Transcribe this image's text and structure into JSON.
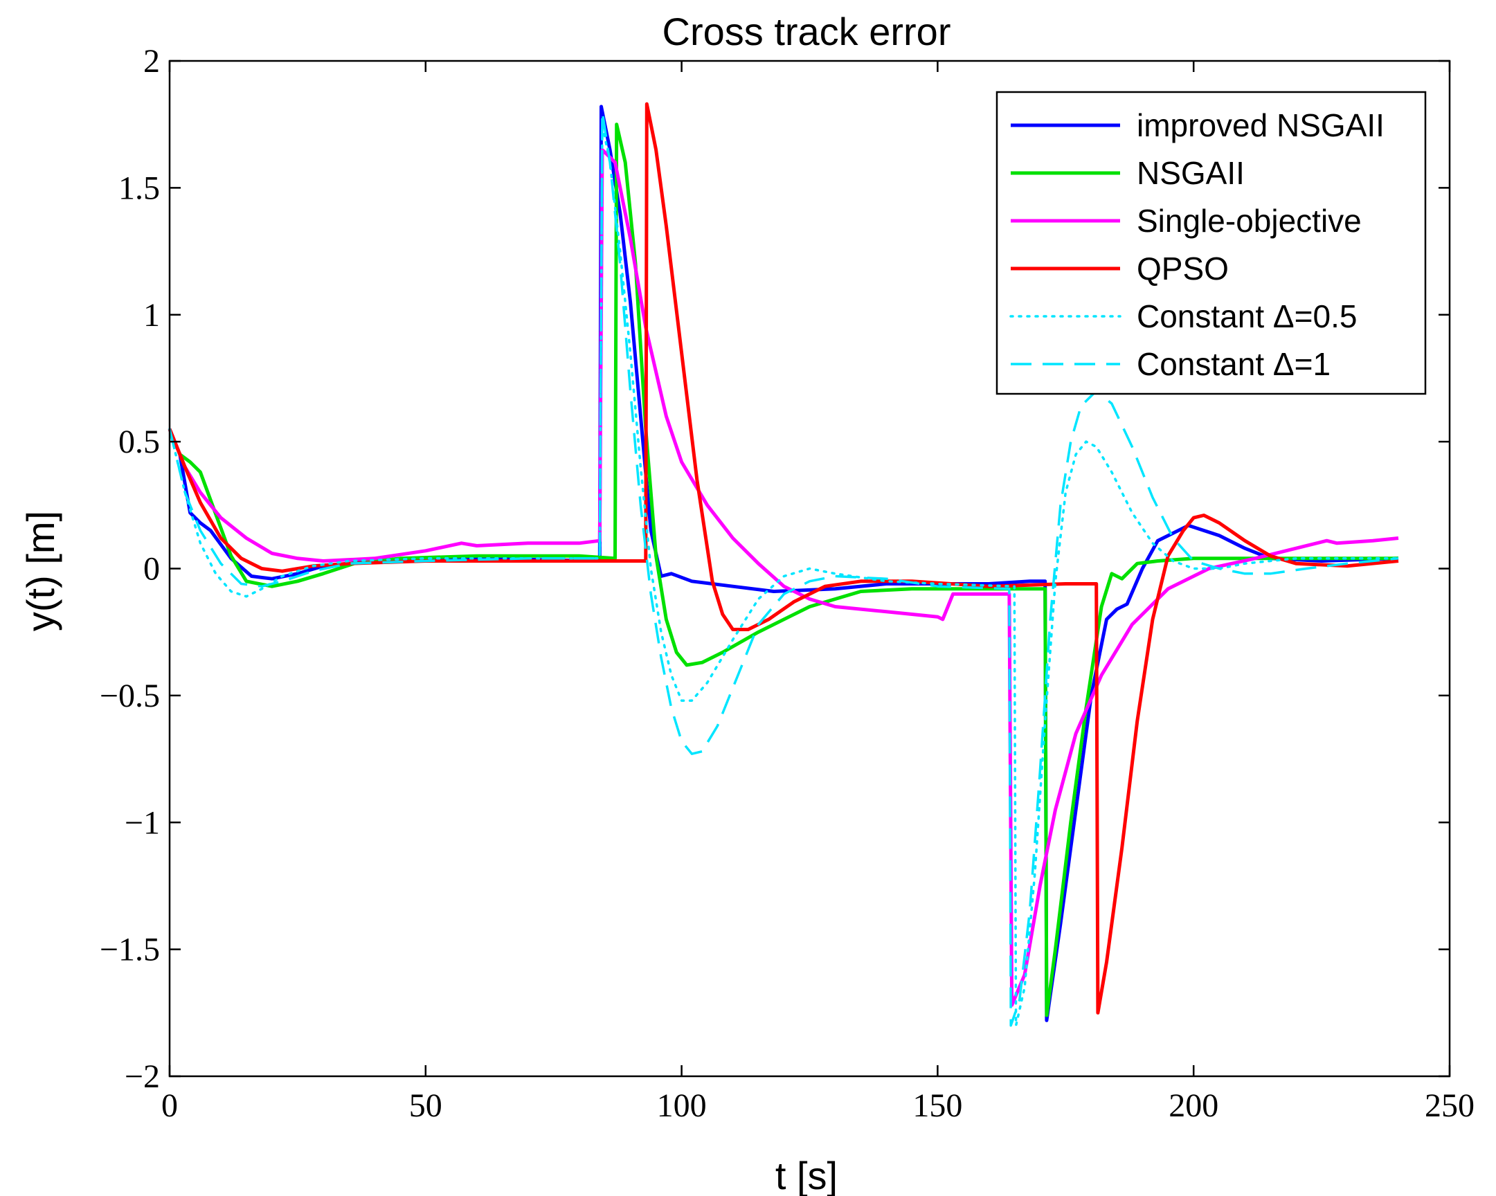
{
  "chart_data": {
    "type": "line",
    "title": "Cross track error",
    "xlabel": "t [s]",
    "ylabel": "y(t) [m]",
    "xlim": [
      0,
      250
    ],
    "ylim": [
      -2,
      2
    ],
    "xticks": [
      0,
      50,
      100,
      150,
      200,
      250
    ],
    "yticks": [
      -2,
      -1.5,
      -1,
      -0.5,
      0,
      0.5,
      1,
      1.5,
      2
    ],
    "xtick_labels": [
      "0",
      "50",
      "100",
      "150",
      "200",
      "250"
    ],
    "ytick_labels": [
      "−2",
      "−1.5",
      "−1",
      "−0.5",
      "0",
      "0.5",
      "1",
      "1.5",
      "2"
    ],
    "grid": false,
    "legend_position": "top-right",
    "series": [
      {
        "name": "improved NSGAII",
        "color": "#0000ff",
        "style": "solid",
        "points": [
          [
            0,
            0.55
          ],
          [
            2,
            0.45
          ],
          [
            4,
            0.22
          ],
          [
            6,
            0.18
          ],
          [
            8,
            0.15
          ],
          [
            12,
            0.04
          ],
          [
            16,
            -0.03
          ],
          [
            20,
            -0.04
          ],
          [
            25,
            -0.02
          ],
          [
            30,
            0.01
          ],
          [
            40,
            0.03
          ],
          [
            60,
            0.04
          ],
          [
            84,
            0.03
          ],
          [
            84.3,
            1.82
          ],
          [
            86,
            1.65
          ],
          [
            88,
            1.4
          ],
          [
            90,
            1.05
          ],
          [
            92,
            0.6
          ],
          [
            94,
            0.15
          ],
          [
            96,
            -0.03
          ],
          [
            98,
            -0.02
          ],
          [
            102,
            -0.05
          ],
          [
            110,
            -0.07
          ],
          [
            118,
            -0.09
          ],
          [
            130,
            -0.08
          ],
          [
            140,
            -0.06
          ],
          [
            160,
            -0.06
          ],
          [
            168,
            -0.05
          ],
          [
            171,
            -0.05
          ],
          [
            171.3,
            -1.78
          ],
          [
            174,
            -1.4
          ],
          [
            177,
            -0.95
          ],
          [
            180,
            -0.5
          ],
          [
            183,
            -0.2
          ],
          [
            185,
            -0.16
          ],
          [
            187,
            -0.14
          ],
          [
            190,
            0.0
          ],
          [
            193,
            0.11
          ],
          [
            196,
            0.14
          ],
          [
            199,
            0.17
          ],
          [
            205,
            0.13
          ],
          [
            210,
            0.08
          ],
          [
            215,
            0.04
          ],
          [
            225,
            0.03
          ],
          [
            240,
            0.04
          ]
        ]
      },
      {
        "name": "NSGAII",
        "color": "#00e000",
        "style": "solid",
        "points": [
          [
            0,
            0.55
          ],
          [
            2,
            0.45
          ],
          [
            4,
            0.42
          ],
          [
            6,
            0.38
          ],
          [
            8,
            0.27
          ],
          [
            12,
            0.05
          ],
          [
            15,
            -0.05
          ],
          [
            20,
            -0.07
          ],
          [
            25,
            -0.05
          ],
          [
            30,
            -0.02
          ],
          [
            36,
            0.02
          ],
          [
            45,
            0.04
          ],
          [
            60,
            0.05
          ],
          [
            80,
            0.05
          ],
          [
            87,
            0.04
          ],
          [
            87.3,
            1.75
          ],
          [
            89,
            1.6
          ],
          [
            91,
            1.2
          ],
          [
            93,
            0.55
          ],
          [
            95,
            0.05
          ],
          [
            97,
            -0.2
          ],
          [
            99,
            -0.33
          ],
          [
            101,
            -0.38
          ],
          [
            104,
            -0.37
          ],
          [
            108,
            -0.33
          ],
          [
            115,
            -0.25
          ],
          [
            125,
            -0.15
          ],
          [
            135,
            -0.09
          ],
          [
            145,
            -0.08
          ],
          [
            160,
            -0.08
          ],
          [
            171,
            -0.08
          ],
          [
            171.3,
            -1.76
          ],
          [
            173,
            -1.5
          ],
          [
            176,
            -1.0
          ],
          [
            179,
            -0.55
          ],
          [
            182,
            -0.15
          ],
          [
            184,
            -0.02
          ],
          [
            186,
            -0.04
          ],
          [
            189,
            0.02
          ],
          [
            193,
            0.03
          ],
          [
            200,
            0.04
          ],
          [
            220,
            0.04
          ],
          [
            240,
            0.04
          ]
        ]
      },
      {
        "name": "Single-objective",
        "color": "#ff00ff",
        "style": "solid",
        "points": [
          [
            0,
            0.55
          ],
          [
            3,
            0.4
          ],
          [
            6,
            0.3
          ],
          [
            10,
            0.2
          ],
          [
            15,
            0.12
          ],
          [
            20,
            0.06
          ],
          [
            25,
            0.04
          ],
          [
            30,
            0.03
          ],
          [
            40,
            0.04
          ],
          [
            50,
            0.07
          ],
          [
            57,
            0.1
          ],
          [
            60,
            0.09
          ],
          [
            70,
            0.1
          ],
          [
            80,
            0.1
          ],
          [
            84,
            0.11
          ],
          [
            84.5,
            1.65
          ],
          [
            87,
            1.6
          ],
          [
            90,
            1.3
          ],
          [
            93,
            0.95
          ],
          [
            97,
            0.6
          ],
          [
            100,
            0.42
          ],
          [
            105,
            0.25
          ],
          [
            110,
            0.12
          ],
          [
            115,
            0.02
          ],
          [
            120,
            -0.07
          ],
          [
            125,
            -0.12
          ],
          [
            130,
            -0.15
          ],
          [
            140,
            -0.17
          ],
          [
            150,
            -0.19
          ],
          [
            151,
            -0.2
          ],
          [
            153,
            -0.1
          ],
          [
            155,
            -0.1
          ],
          [
            158,
            -0.1
          ],
          [
            160,
            -0.1
          ],
          [
            164,
            -0.1
          ],
          [
            164.5,
            -1.72
          ],
          [
            167,
            -1.6
          ],
          [
            170,
            -1.25
          ],
          [
            173,
            -0.95
          ],
          [
            177,
            -0.65
          ],
          [
            182,
            -0.42
          ],
          [
            188,
            -0.22
          ],
          [
            195,
            -0.08
          ],
          [
            203,
            0.0
          ],
          [
            212,
            0.04
          ],
          [
            220,
            0.08
          ],
          [
            226,
            0.11
          ],
          [
            228,
            0.1
          ],
          [
            235,
            0.11
          ],
          [
            240,
            0.12
          ]
        ]
      },
      {
        "name": "QPSO",
        "color": "#ff0000",
        "style": "solid",
        "points": [
          [
            0,
            0.55
          ],
          [
            3,
            0.4
          ],
          [
            6,
            0.26
          ],
          [
            10,
            0.12
          ],
          [
            14,
            0.04
          ],
          [
            18,
            0.0
          ],
          [
            22,
            -0.01
          ],
          [
            28,
            0.01
          ],
          [
            35,
            0.02
          ],
          [
            50,
            0.03
          ],
          [
            70,
            0.03
          ],
          [
            90,
            0.03
          ],
          [
            93,
            0.03
          ],
          [
            93.2,
            1.83
          ],
          [
            95,
            1.65
          ],
          [
            97,
            1.35
          ],
          [
            100,
            0.85
          ],
          [
            103,
            0.35
          ],
          [
            106,
            -0.05
          ],
          [
            108,
            -0.18
          ],
          [
            110,
            -0.24
          ],
          [
            113,
            -0.24
          ],
          [
            117,
            -0.2
          ],
          [
            122,
            -0.13
          ],
          [
            128,
            -0.07
          ],
          [
            135,
            -0.05
          ],
          [
            145,
            -0.05
          ],
          [
            160,
            -0.07
          ],
          [
            175,
            -0.06
          ],
          [
            181,
            -0.06
          ],
          [
            181.3,
            -1.75
          ],
          [
            183,
            -1.55
          ],
          [
            186,
            -1.1
          ],
          [
            189,
            -0.6
          ],
          [
            192,
            -0.2
          ],
          [
            195,
            0.05
          ],
          [
            198,
            0.15
          ],
          [
            200,
            0.2
          ],
          [
            202,
            0.21
          ],
          [
            205,
            0.18
          ],
          [
            210,
            0.11
          ],
          [
            215,
            0.05
          ],
          [
            220,
            0.02
          ],
          [
            230,
            0.01
          ],
          [
            240,
            0.03
          ]
        ]
      },
      {
        "name": "Constant Δ=0.5",
        "color": "#00e5ff",
        "style": "dotted",
        "points": [
          [
            0,
            0.55
          ],
          [
            3,
            0.3
          ],
          [
            6,
            0.1
          ],
          [
            9,
            -0.02
          ],
          [
            12,
            -0.09
          ],
          [
            15,
            -0.11
          ],
          [
            18,
            -0.08
          ],
          [
            22,
            -0.03
          ],
          [
            28,
            0.01
          ],
          [
            35,
            0.03
          ],
          [
            50,
            0.04
          ],
          [
            70,
            0.04
          ],
          [
            84,
            0.04
          ],
          [
            84.5,
            1.75
          ],
          [
            86,
            1.6
          ],
          [
            88,
            1.25
          ],
          [
            90,
            0.85
          ],
          [
            92,
            0.4
          ],
          [
            94,
            0.0
          ],
          [
            96,
            -0.25
          ],
          [
            98,
            -0.42
          ],
          [
            100,
            -0.52
          ],
          [
            102,
            -0.52
          ],
          [
            105,
            -0.45
          ],
          [
            110,
            -0.28
          ],
          [
            115,
            -0.12
          ],
          [
            120,
            -0.03
          ],
          [
            125,
            0.0
          ],
          [
            130,
            -0.02
          ],
          [
            140,
            -0.05
          ],
          [
            150,
            -0.06
          ],
          [
            165,
            -0.07
          ],
          [
            165.3,
            -1.8
          ],
          [
            167,
            -1.65
          ],
          [
            169,
            -1.2
          ],
          [
            171,
            -0.6
          ],
          [
            173,
            -0.05
          ],
          [
            175,
            0.3
          ],
          [
            177,
            0.45
          ],
          [
            179,
            0.5
          ],
          [
            181,
            0.48
          ],
          [
            184,
            0.38
          ],
          [
            188,
            0.22
          ],
          [
            192,
            0.1
          ],
          [
            196,
            0.03
          ],
          [
            200,
            0.0
          ],
          [
            205,
            0.0
          ],
          [
            210,
            0.02
          ],
          [
            220,
            0.04
          ],
          [
            240,
            0.04
          ]
        ]
      },
      {
        "name": "Constant Δ=1",
        "color": "#00e5ff",
        "style": "dashed",
        "points": [
          [
            0,
            0.55
          ],
          [
            3,
            0.3
          ],
          [
            6,
            0.15
          ],
          [
            10,
            0.02
          ],
          [
            14,
            -0.06
          ],
          [
            18,
            -0.07
          ],
          [
            22,
            -0.05
          ],
          [
            28,
            -0.01
          ],
          [
            35,
            0.02
          ],
          [
            50,
            0.03
          ],
          [
            70,
            0.04
          ],
          [
            84,
            0.04
          ],
          [
            84.5,
            1.8
          ],
          [
            86,
            1.6
          ],
          [
            88,
            1.2
          ],
          [
            90,
            0.7
          ],
          [
            92,
            0.25
          ],
          [
            94,
            -0.1
          ],
          [
            96,
            -0.35
          ],
          [
            98,
            -0.55
          ],
          [
            100,
            -0.68
          ],
          [
            102,
            -0.73
          ],
          [
            104,
            -0.72
          ],
          [
            107,
            -0.62
          ],
          [
            111,
            -0.42
          ],
          [
            115,
            -0.22
          ],
          [
            120,
            -0.1
          ],
          [
            125,
            -0.05
          ],
          [
            130,
            -0.03
          ],
          [
            140,
            -0.04
          ],
          [
            150,
            -0.07
          ],
          [
            164,
            -0.08
          ],
          [
            164.3,
            -1.8
          ],
          [
            166,
            -1.7
          ],
          [
            168,
            -1.35
          ],
          [
            170,
            -0.8
          ],
          [
            172,
            -0.2
          ],
          [
            174,
            0.25
          ],
          [
            176,
            0.5
          ],
          [
            178,
            0.64
          ],
          [
            181,
            0.7
          ],
          [
            184,
            0.65
          ],
          [
            188,
            0.48
          ],
          [
            192,
            0.28
          ],
          [
            196,
            0.12
          ],
          [
            200,
            0.03
          ],
          [
            205,
            0.0
          ],
          [
            210,
            -0.02
          ],
          [
            215,
            -0.02
          ],
          [
            222,
            0.0
          ],
          [
            230,
            0.02
          ],
          [
            240,
            0.04
          ]
        ]
      }
    ]
  }
}
